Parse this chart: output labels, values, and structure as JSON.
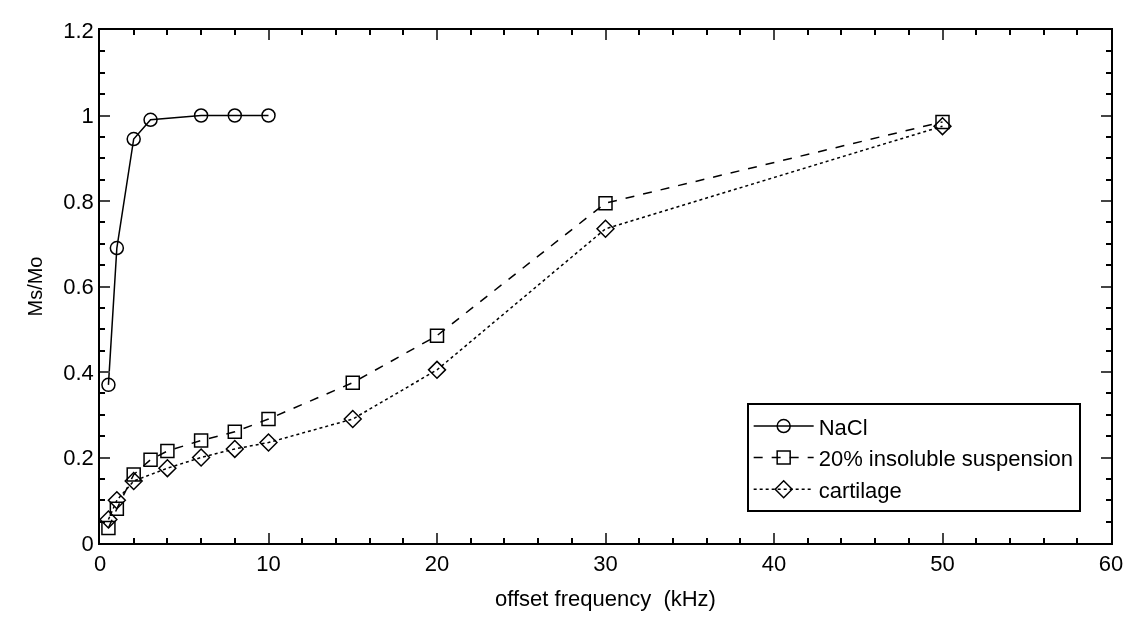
{
  "chart_data": {
    "type": "line",
    "xlabel": "offset frequency  (kHz)",
    "ylabel": "Ms/Mo",
    "xlim": [
      0,
      60
    ],
    "xticks": [
      0,
      10,
      20,
      30,
      40,
      50,
      60
    ],
    "ylim": [
      0,
      1.2
    ],
    "yticks": [
      0,
      0.2,
      0.4,
      0.6,
      0.8,
      1,
      1.2
    ],
    "legend": "bottom right",
    "series": [
      {
        "name": "NaCl",
        "color": "#000000",
        "marker": "circle",
        "line_style": "solid",
        "x": [
          0.5,
          1,
          2,
          3,
          6,
          8,
          10
        ],
        "values": [
          0.37,
          0.69,
          0.945,
          0.99,
          1.0,
          1.0,
          1.0
        ]
      },
      {
        "name": "20% insoluble suspension",
        "color": "#000000",
        "marker": "square",
        "line_style": "dashed",
        "x": [
          0.5,
          1,
          2,
          3,
          4,
          6,
          8,
          10,
          15,
          20,
          30,
          50
        ],
        "values": [
          0.035,
          0.08,
          0.16,
          0.195,
          0.215,
          0.24,
          0.26,
          0.29,
          0.375,
          0.485,
          0.795,
          0.985
        ]
      },
      {
        "name": "cartilage",
        "color": "#000000",
        "marker": "diamond",
        "line_style": "dotted",
        "x": [
          0.5,
          1,
          2,
          4,
          6,
          8,
          10,
          15,
          20,
          30,
          50
        ],
        "values": [
          0.055,
          0.1,
          0.145,
          0.175,
          0.2,
          0.22,
          0.235,
          0.29,
          0.405,
          0.735,
          0.975
        ]
      }
    ]
  }
}
